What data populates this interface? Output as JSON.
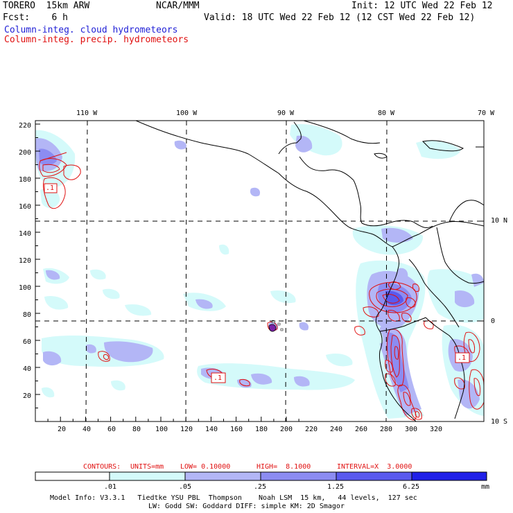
{
  "header": {
    "model": "TORERO  15km ARW",
    "org": "NCAR/MMM",
    "init": "Init: 12 UTC Wed 22 Feb 12",
    "fcst": "Fcst:    6 h",
    "valid": "Valid: 18 UTC Wed 22 Feb 12 (12 CST Wed 22 Feb 12)",
    "field1": "Column-integ. cloud hydrometeors",
    "field2": "Column-integ. precip. hydrometeors"
  },
  "colors": {
    "field1": "#1f1fd6",
    "field2": "#e01010",
    "bin1": "#d4fafa",
    "bin2": "#b3b6f6",
    "bin3": "#8c8cf2",
    "bin4": "#5a5aee",
    "bin5": "#2020e8",
    "map_line": "#000000"
  },
  "lon_labels": [
    "110 W",
    "100 W",
    "90 W",
    "80 W",
    "70 W"
  ],
  "lat_labels": [
    "10 N",
    "0",
    "10 S"
  ],
  "y_ticks": [
    "220",
    "200",
    "180",
    "160",
    "140",
    "120",
    "100",
    "80",
    "60",
    "40",
    "20"
  ],
  "x_ticks": [
    "20",
    "40",
    "60",
    "80",
    "100",
    "120",
    "140",
    "160",
    "180",
    "200",
    "220",
    "240",
    "260",
    "280",
    "300",
    "320"
  ],
  "contour_labels": [
    ".1",
    ".1",
    ".1"
  ],
  "contour_info": {
    "label": "CONTOURS:",
    "units": "UNITS=mm",
    "low": "LOW= 0.10000",
    "high": "HIGH=  8.1000",
    "interval": "INTERVAL=X  3.0000"
  },
  "colorbar": {
    "labels": [
      ".01",
      ".05",
      ".25",
      "1.25",
      "6.25"
    ],
    "units": "mm"
  },
  "model_info": {
    "line1": "Model Info: V3.3.1   Tiedtke YSU PBL  Thompson    Noah LSM  15 km,   44 levels,  127 sec",
    "line2": "LW: Godd SW: Goddard DIFF: simple KM: 2D Smagor"
  }
}
